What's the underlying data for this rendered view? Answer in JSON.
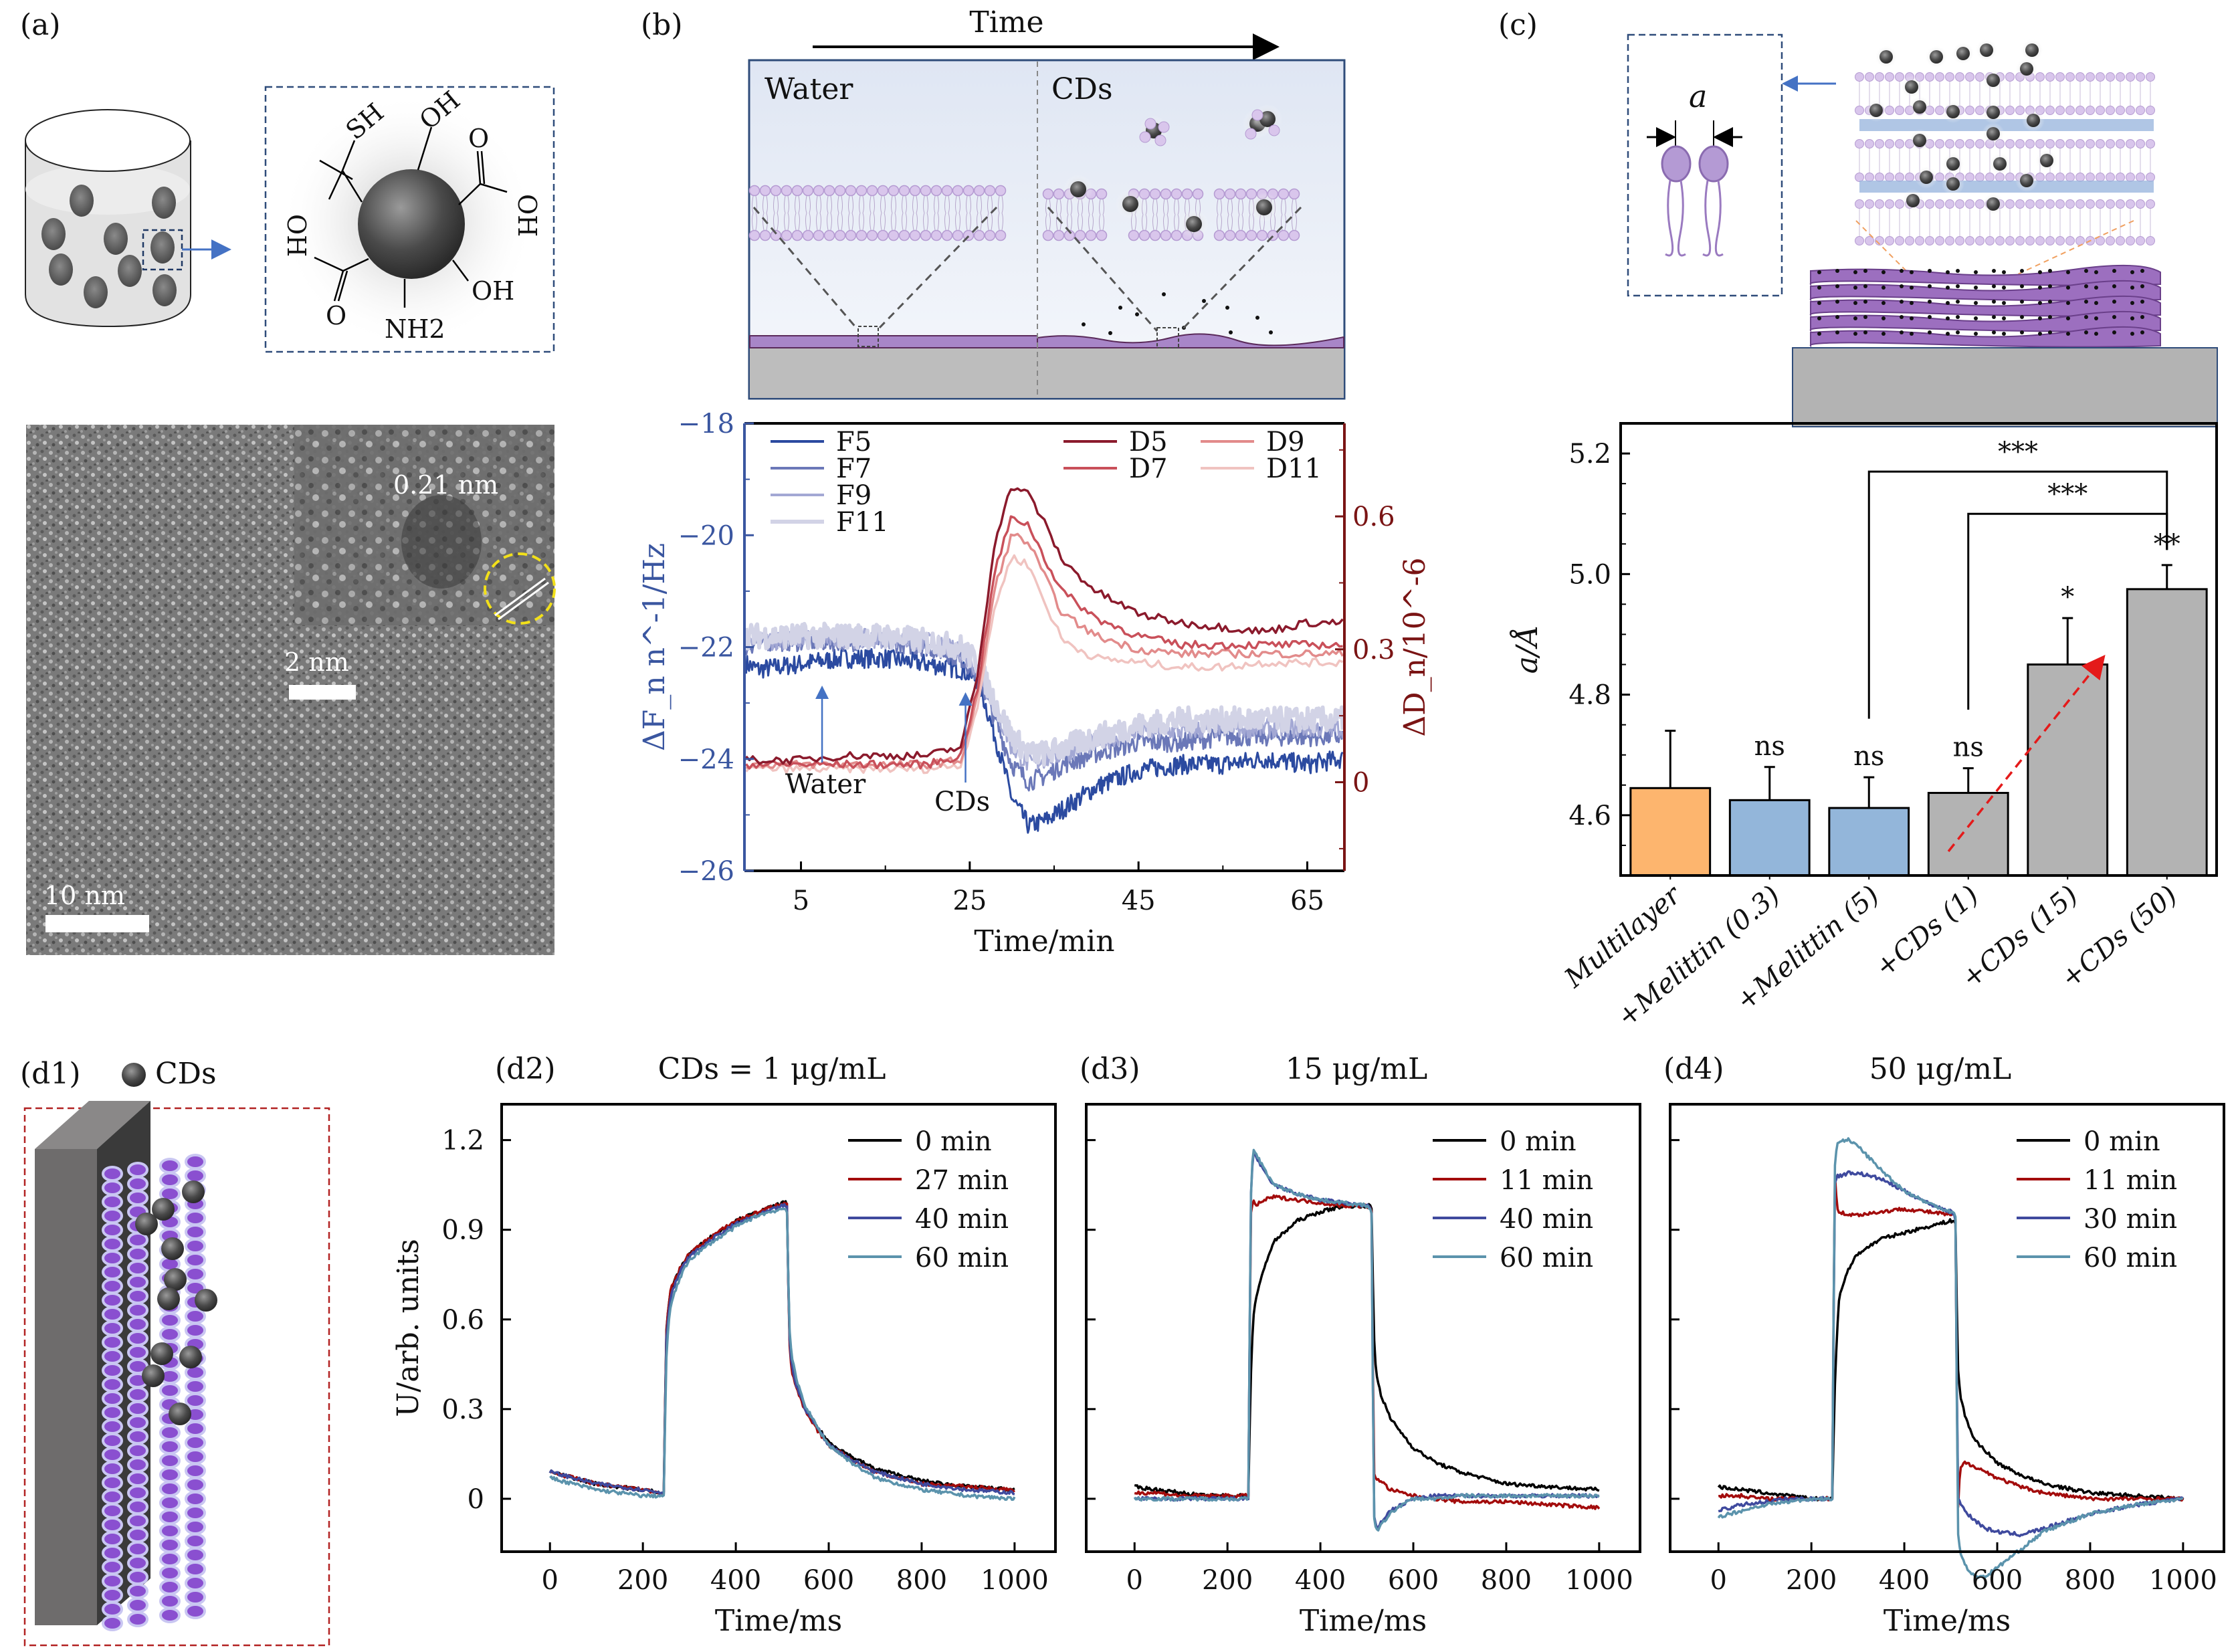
{
  "figure": {
    "panels": {
      "a": {
        "label": "(a)",
        "molecule_groups": [
          "SH",
          "OH",
          "O",
          "OH",
          "OH",
          "NH2",
          "O",
          "OH"
        ],
        "tem": {
          "lattice_spacing": "0.21 nm",
          "inset_scale_bar": "2 nm",
          "main_scale_bar": "10 nm"
        }
      },
      "b": {
        "label": "(b)",
        "schematic": {
          "time_label": "Time",
          "left_label": "Water",
          "right_label": "CDs"
        }
      },
      "c": {
        "label": "(c)",
        "spacing_symbol": "a"
      },
      "d1": {
        "label": "(d1)",
        "legend_label": "CDs"
      }
    },
    "colors": {
      "F5": "#2b4aa0",
      "F7": "#6b78b8",
      "F9": "#a3a8d4",
      "F11": "#d2d3e6",
      "D5": "#8b1a2c",
      "D7": "#c9505a",
      "D9": "#e28b8b",
      "D11": "#f0c3c0",
      "axis_left": "#3a56a0",
      "axis_right": "#7a1414",
      "bar_multilayer": "#fdb56e",
      "bar_melittin": "#93b6da",
      "bar_cds": "#b3b3b3",
      "t0": "#000000",
      "t1": "#a30c0c",
      "t2": "#3f4a9e",
      "t3": "#5b93ac"
    }
  },
  "chart_data": [
    {
      "id": "b",
      "type": "line",
      "title": "",
      "xlabel": "Time/min",
      "ylabel": "ΔF_n n^-1/Hz",
      "ylabel_right": "ΔD_n/10^-6",
      "xlim": [
        -1.7,
        69.4
      ],
      "ylim": [
        -26,
        -18
      ],
      "ylim_right": [
        -0.2,
        0.81
      ],
      "xticks": [
        5,
        25,
        45,
        65
      ],
      "xtick_labels": [
        "5",
        "25",
        "45",
        "65"
      ],
      "yticks": [
        -18,
        -20,
        -22,
        -24,
        -26
      ],
      "ytick_labels": [
        "−18",
        "−20",
        "−22",
        "−24",
        "−26"
      ],
      "yticks_right": [
        0,
        0.3,
        0.6
      ],
      "ytick_labels_right": [
        "0",
        "0.3",
        "0.6"
      ],
      "legend": "top",
      "annotations": [
        {
          "text": "Water",
          "x": 7.5
        },
        {
          "text": "CDs",
          "x": 24.5
        }
      ],
      "x": [
        -1.5,
        0,
        5,
        10,
        15,
        20,
        24,
        26,
        28,
        30,
        32,
        34,
        36,
        40,
        45,
        50,
        55,
        60,
        65,
        69
      ],
      "series": [
        {
          "name": "F5",
          "axis": "left",
          "values": [
            -22.3,
            -22.4,
            -22.3,
            -22.2,
            -22.2,
            -22.3,
            -22.4,
            -22.6,
            -23.6,
            -24.7,
            -25.2,
            -25.1,
            -24.9,
            -24.5,
            -24.2,
            -24.1,
            -24.1,
            -24.0,
            -24.1,
            -24.0
          ]
        },
        {
          "name": "F7",
          "axis": "left",
          "values": [
            -22.0,
            -21.9,
            -21.9,
            -21.9,
            -21.9,
            -22.0,
            -22.2,
            -22.5,
            -23.3,
            -24.1,
            -24.4,
            -24.3,
            -24.1,
            -23.9,
            -23.7,
            -23.7,
            -23.6,
            -23.6,
            -23.6,
            -23.6
          ]
        },
        {
          "name": "F9",
          "axis": "left",
          "values": [
            -21.9,
            -21.9,
            -21.85,
            -21.85,
            -21.85,
            -21.9,
            -22.1,
            -22.4,
            -23.1,
            -23.8,
            -24.1,
            -24.0,
            -23.9,
            -23.7,
            -23.5,
            -23.5,
            -23.45,
            -23.45,
            -23.45,
            -23.45
          ]
        },
        {
          "name": "F11",
          "axis": "left",
          "values": [
            -21.8,
            -21.8,
            -21.8,
            -21.8,
            -21.8,
            -21.9,
            -22.0,
            -22.3,
            -23.0,
            -23.6,
            -23.9,
            -23.9,
            -23.8,
            -23.6,
            -23.4,
            -23.3,
            -23.3,
            -23.3,
            -23.3,
            -23.3
          ]
        },
        {
          "name": "D5",
          "axis": "right",
          "values": [
            0.05,
            0.05,
            0.05,
            0.06,
            0.06,
            0.06,
            0.08,
            0.25,
            0.55,
            0.67,
            0.65,
            0.58,
            0.5,
            0.43,
            0.38,
            0.36,
            0.35,
            0.34,
            0.36,
            0.36
          ]
        },
        {
          "name": "D7",
          "axis": "right",
          "values": [
            0.04,
            0.04,
            0.04,
            0.04,
            0.04,
            0.04,
            0.06,
            0.22,
            0.48,
            0.6,
            0.58,
            0.5,
            0.43,
            0.37,
            0.33,
            0.31,
            0.31,
            0.31,
            0.31,
            0.31
          ]
        },
        {
          "name": "D9",
          "axis": "right",
          "values": [
            0.04,
            0.04,
            0.04,
            0.04,
            0.04,
            0.04,
            0.05,
            0.2,
            0.44,
            0.56,
            0.54,
            0.46,
            0.38,
            0.33,
            0.3,
            0.29,
            0.29,
            0.29,
            0.29,
            0.29
          ]
        },
        {
          "name": "D11",
          "axis": "right",
          "values": [
            0.03,
            0.03,
            0.03,
            0.03,
            0.03,
            0.03,
            0.04,
            0.18,
            0.4,
            0.51,
            0.49,
            0.4,
            0.32,
            0.28,
            0.27,
            0.26,
            0.26,
            0.27,
            0.27,
            0.27
          ]
        }
      ]
    },
    {
      "id": "c",
      "type": "bar",
      "title": "",
      "xlabel": "",
      "ylabel": "a/Å",
      "ylim": [
        4.5,
        5.25
      ],
      "yticks": [
        4.6,
        4.8,
        5.0,
        5.2
      ],
      "ytick_labels": [
        "4.6",
        "4.8",
        "5.0",
        "5.2"
      ],
      "categories": [
        "Multilayer",
        "+Melittin (0.3)",
        "+Melittin (5)",
        "+CDs (1)",
        "+CDs (15)",
        "+CDs (50)"
      ],
      "values": [
        4.645,
        4.625,
        4.612,
        4.637,
        4.85,
        4.975
      ],
      "errors": [
        0.095,
        0.055,
        0.051,
        0.041,
        0.077,
        0.04
      ],
      "significance": [
        "",
        "ns",
        "ns",
        "ns",
        "*",
        "**"
      ],
      "brackets": [
        {
          "from": 2,
          "to": 5,
          "label": "***",
          "y": 5.17
        },
        {
          "from": 3,
          "to": 5,
          "label": "***",
          "y": 5.1
        }
      ],
      "trend_arrow": {
        "from": [
          3.3,
          4.54
        ],
        "to": [
          4.85,
          4.86
        ]
      }
    },
    {
      "id": "d2",
      "type": "line",
      "title": "CDs = 1 μg/mL",
      "panel_label": "(d2)",
      "xlabel": "Time/ms",
      "ylabel": "U/arb. units",
      "xlim": [
        -104,
        1088
      ],
      "ylim": [
        -0.177,
        1.32
      ],
      "xticks": [
        0,
        200,
        400,
        600,
        800,
        1000
      ],
      "xtick_labels": [
        "0",
        "200",
        "400",
        "600",
        "800",
        "1000"
      ],
      "yticks": [
        0,
        0.3,
        0.6,
        0.9,
        1.2
      ],
      "ytick_labels": [
        "0",
        "0.3",
        "0.6",
        "0.9",
        "1.2"
      ],
      "legend": "top-right",
      "x": [
        0,
        50,
        100,
        150,
        200,
        245,
        250,
        255,
        260,
        280,
        300,
        350,
        400,
        450,
        500,
        510,
        515,
        520,
        530,
        550,
        575,
        600,
        650,
        700,
        800,
        900,
        1000
      ],
      "series": [
        {
          "name": "0 min",
          "values": [
            0.09,
            0.07,
            0.05,
            0.04,
            0.03,
            0.02,
            0.55,
            0.64,
            0.7,
            0.77,
            0.82,
            0.88,
            0.93,
            0.96,
            0.99,
            0.99,
            0.55,
            0.45,
            0.38,
            0.3,
            0.24,
            0.19,
            0.14,
            0.1,
            0.06,
            0.04,
            0.03
          ]
        },
        {
          "name": "27 min",
          "values": [
            0.09,
            0.07,
            0.05,
            0.04,
            0.03,
            0.02,
            0.55,
            0.64,
            0.7,
            0.77,
            0.82,
            0.88,
            0.93,
            0.96,
            0.99,
            0.99,
            0.53,
            0.43,
            0.37,
            0.29,
            0.23,
            0.18,
            0.13,
            0.09,
            0.05,
            0.04,
            0.03
          ]
        },
        {
          "name": "40 min",
          "values": [
            0.09,
            0.07,
            0.05,
            0.04,
            0.03,
            0.02,
            0.52,
            0.62,
            0.68,
            0.76,
            0.81,
            0.87,
            0.92,
            0.95,
            0.98,
            0.98,
            0.55,
            0.45,
            0.38,
            0.3,
            0.24,
            0.18,
            0.13,
            0.09,
            0.05,
            0.03,
            0.02
          ]
        },
        {
          "name": "60 min",
          "values": [
            0.07,
            0.05,
            0.03,
            0.02,
            0.01,
            0.01,
            0.45,
            0.58,
            0.65,
            0.74,
            0.8,
            0.86,
            0.91,
            0.95,
            0.97,
            0.97,
            0.58,
            0.48,
            0.4,
            0.31,
            0.24,
            0.18,
            0.12,
            0.07,
            0.03,
            0.01,
            0.0
          ]
        }
      ]
    },
    {
      "id": "d3",
      "type": "line",
      "title": "15 μg/mL",
      "panel_label": "(d3)",
      "xlabel": "Time/ms",
      "ylabel": "",
      "xlim": [
        -104,
        1088
      ],
      "ylim": [
        -0.177,
        1.32
      ],
      "xticks": [
        0,
        200,
        400,
        600,
        800,
        1000
      ],
      "xtick_labels": [
        "0",
        "200",
        "400",
        "600",
        "800",
        "1000"
      ],
      "yticks": [
        0,
        0.3,
        0.6,
        0.9,
        1.2
      ],
      "legend": "top-right",
      "x": [
        0,
        50,
        100,
        150,
        200,
        245,
        250,
        255,
        260,
        280,
        300,
        350,
        400,
        450,
        500,
        510,
        515,
        520,
        530,
        550,
        575,
        600,
        650,
        700,
        800,
        900,
        1000
      ],
      "series": [
        {
          "name": "0 min",
          "values": [
            0.04,
            0.03,
            0.02,
            0.01,
            0.01,
            0.01,
            0.4,
            0.6,
            0.66,
            0.78,
            0.86,
            0.93,
            0.96,
            0.98,
            0.98,
            0.98,
            0.55,
            0.42,
            0.35,
            0.27,
            0.22,
            0.17,
            0.12,
            0.09,
            0.05,
            0.04,
            0.03
          ]
        },
        {
          "name": "11 min",
          "values": [
            0.02,
            0.02,
            0.01,
            0.01,
            0.01,
            0.01,
            0.95,
            1.0,
            0.98,
            1.0,
            1.01,
            1.0,
            0.99,
            0.98,
            0.98,
            0.97,
            0.08,
            0.07,
            0.06,
            0.03,
            0.02,
            0.01,
            0.0,
            -0.01,
            -0.01,
            -0.02,
            -0.03
          ]
        },
        {
          "name": "40 min",
          "values": [
            0.0,
            0.0,
            0.0,
            0.0,
            0.0,
            0.0,
            1.0,
            1.16,
            1.15,
            1.09,
            1.05,
            1.02,
            1.0,
            0.99,
            0.98,
            0.97,
            -0.05,
            -0.1,
            -0.08,
            -0.04,
            -0.02,
            0.0,
            0.01,
            0.01,
            0.01,
            0.01,
            0.01
          ]
        },
        {
          "name": "60 min",
          "values": [
            0.0,
            0.0,
            0.0,
            0.0,
            0.0,
            0.0,
            1.0,
            1.17,
            1.16,
            1.1,
            1.05,
            1.02,
            1.0,
            0.99,
            0.98,
            0.97,
            -0.06,
            -0.11,
            -0.09,
            -0.05,
            -0.02,
            0.0,
            0.0,
            0.01,
            0.01,
            0.01,
            0.01
          ]
        }
      ]
    },
    {
      "id": "d4",
      "type": "line",
      "title": "50 μg/mL",
      "panel_label": "(d4)",
      "xlabel": "Time/ms",
      "ylabel": "",
      "xlim": [
        -104,
        1088
      ],
      "ylim": [
        -0.177,
        1.32
      ],
      "xticks": [
        0,
        200,
        400,
        600,
        800,
        1000
      ],
      "xtick_labels": [
        "0",
        "200",
        "400",
        "600",
        "800",
        "1000"
      ],
      "yticks": [
        0,
        0.3,
        0.6,
        0.9,
        1.2
      ],
      "legend": "top-right",
      "x": [
        0,
        50,
        100,
        150,
        200,
        245,
        250,
        255,
        260,
        280,
        300,
        350,
        400,
        450,
        500,
        510,
        515,
        520,
        530,
        550,
        575,
        600,
        650,
        700,
        800,
        900,
        1000
      ],
      "series": [
        {
          "name": "0 min",
          "values": [
            0.04,
            0.03,
            0.02,
            0.01,
            0.0,
            0.0,
            0.35,
            0.55,
            0.68,
            0.77,
            0.82,
            0.87,
            0.89,
            0.91,
            0.93,
            0.93,
            0.45,
            0.35,
            0.28,
            0.2,
            0.16,
            0.12,
            0.08,
            0.05,
            0.02,
            0.01,
            0.0
          ]
        },
        {
          "name": "11 min",
          "values": [
            0.01,
            0.01,
            0.0,
            0.0,
            0.0,
            0.0,
            1.1,
            0.98,
            0.96,
            0.95,
            0.95,
            0.96,
            0.97,
            0.96,
            0.95,
            0.95,
            -0.05,
            0.1,
            0.12,
            0.11,
            0.09,
            0.07,
            0.04,
            0.02,
            0.0,
            0.0,
            0.0
          ]
        },
        {
          "name": "30 min",
          "values": [
            -0.04,
            -0.02,
            -0.01,
            0.0,
            0.0,
            0.0,
            1.05,
            1.08,
            1.08,
            1.09,
            1.09,
            1.07,
            1.03,
            0.99,
            0.96,
            0.95,
            0.0,
            -0.01,
            -0.04,
            -0.07,
            -0.1,
            -0.11,
            -0.12,
            -0.1,
            -0.05,
            -0.02,
            0.0
          ]
        },
        {
          "name": "60 min",
          "values": [
            -0.06,
            -0.04,
            -0.02,
            -0.01,
            0.0,
            0.0,
            1.1,
            1.18,
            1.2,
            1.2,
            1.18,
            1.1,
            1.03,
            0.99,
            0.96,
            0.96,
            -0.1,
            -0.18,
            -0.22,
            -0.26,
            -0.26,
            -0.23,
            -0.17,
            -0.11,
            -0.05,
            -0.02,
            0.0
          ]
        }
      ]
    }
  ]
}
